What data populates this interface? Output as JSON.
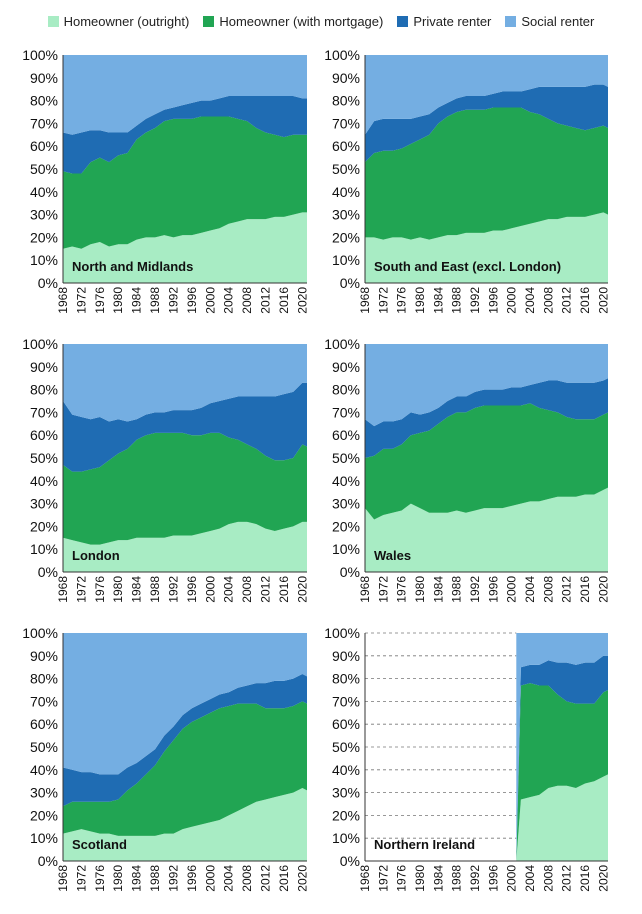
{
  "legend": [
    {
      "label": "Homeowner (outright)",
      "color": "#a8ecc4"
    },
    {
      "label": "Homeowner (with mortgage)",
      "color": "#21a553"
    },
    {
      "label": "Private renter",
      "color": "#1f6cb3"
    },
    {
      "label": "Social renter",
      "color": "#74aee2"
    }
  ],
  "chart_data": [
    {
      "type": "area",
      "stacked": true,
      "title": "North and Midlands",
      "x": [
        1968,
        1970,
        1972,
        1974,
        1976,
        1978,
        1980,
        1982,
        1984,
        1986,
        1988,
        1990,
        1992,
        1994,
        1996,
        1998,
        2000,
        2002,
        2004,
        2006,
        2008,
        2010,
        2012,
        2014,
        2016,
        2018,
        2020,
        2021
      ],
      "series": [
        {
          "name": "Homeowner (outright)",
          "values": [
            15,
            16,
            15,
            17,
            18,
            16,
            17,
            17,
            19,
            20,
            20,
            21,
            20,
            21,
            21,
            22,
            23,
            24,
            26,
            27,
            28,
            28,
            28,
            29,
            29,
            30,
            31,
            31
          ]
        },
        {
          "name": "Homeowner (with mortgage)",
          "values": [
            34,
            32,
            33,
            36,
            37,
            37,
            39,
            40,
            44,
            46,
            48,
            50,
            52,
            51,
            51,
            51,
            50,
            49,
            47,
            45,
            43,
            40,
            38,
            36,
            35,
            35,
            34,
            34
          ]
        },
        {
          "name": "Private renter",
          "values": [
            17,
            17,
            18,
            14,
            12,
            13,
            10,
            9,
            6,
            6,
            6,
            5,
            5,
            6,
            7,
            7,
            7,
            8,
            9,
            10,
            11,
            14,
            16,
            17,
            18,
            17,
            16,
            16
          ]
        },
        {
          "name": "Social renter",
          "values": [
            34,
            35,
            34,
            33,
            33,
            34,
            34,
            34,
            31,
            28,
            26,
            24,
            23,
            22,
            21,
            20,
            20,
            19,
            18,
            18,
            18,
            18,
            18,
            18,
            18,
            18,
            19,
            19
          ]
        }
      ],
      "ylim": [
        0,
        100
      ],
      "yticks": [
        "0%",
        "10%",
        "20%",
        "30%",
        "40%",
        "50%",
        "60%",
        "70%",
        "80%",
        "90%",
        "100%"
      ],
      "xticks": [
        "1968",
        "1972",
        "1976",
        "1980",
        "1984",
        "1988",
        "1992",
        "1996",
        "2000",
        "2004",
        "2008",
        "2012",
        "2016",
        "2020"
      ]
    },
    {
      "type": "area",
      "stacked": true,
      "title": "South and East (excl. London)",
      "x": [
        1968,
        1970,
        1972,
        1974,
        1976,
        1978,
        1980,
        1982,
        1984,
        1986,
        1988,
        1990,
        1992,
        1994,
        1996,
        1998,
        2000,
        2002,
        2004,
        2006,
        2008,
        2010,
        2012,
        2014,
        2016,
        2018,
        2020,
        2021
      ],
      "series": [
        {
          "name": "Homeowner (outright)",
          "values": [
            20,
            20,
            19,
            20,
            20,
            19,
            20,
            19,
            20,
            21,
            21,
            22,
            22,
            22,
            23,
            23,
            24,
            25,
            26,
            27,
            28,
            28,
            29,
            29,
            29,
            30,
            31,
            30
          ]
        },
        {
          "name": "Homeowner (with mortgage)",
          "values": [
            33,
            37,
            39,
            38,
            39,
            42,
            43,
            46,
            50,
            52,
            54,
            54,
            54,
            54,
            54,
            54,
            53,
            52,
            49,
            47,
            44,
            42,
            40,
            39,
            38,
            38,
            38,
            38
          ]
        },
        {
          "name": "Private renter",
          "values": [
            12,
            14,
            14,
            14,
            13,
            11,
            10,
            9,
            7,
            6,
            6,
            6,
            6,
            6,
            6,
            7,
            7,
            7,
            10,
            12,
            14,
            16,
            17,
            18,
            19,
            19,
            18,
            18
          ]
        },
        {
          "name": "Social renter",
          "values": [
            35,
            29,
            28,
            28,
            28,
            28,
            27,
            26,
            23,
            21,
            19,
            18,
            18,
            18,
            17,
            16,
            16,
            16,
            15,
            14,
            14,
            14,
            14,
            14,
            14,
            13,
            13,
            14
          ]
        }
      ],
      "ylim": [
        0,
        100
      ],
      "yticks": [
        "0%",
        "10%",
        "20%",
        "30%",
        "40%",
        "50%",
        "60%",
        "70%",
        "80%",
        "90%",
        "100%"
      ],
      "xticks": [
        "1968",
        "1972",
        "1976",
        "1980",
        "1984",
        "1988",
        "1992",
        "1996",
        "2000",
        "2004",
        "2008",
        "2012",
        "2016",
        "2020"
      ]
    },
    {
      "type": "area",
      "stacked": true,
      "title": "London",
      "x": [
        1968,
        1970,
        1972,
        1974,
        1976,
        1978,
        1980,
        1982,
        1984,
        1986,
        1988,
        1990,
        1992,
        1994,
        1996,
        1998,
        2000,
        2002,
        2004,
        2006,
        2008,
        2010,
        2012,
        2014,
        2016,
        2018,
        2020,
        2021
      ],
      "series": [
        {
          "name": "Homeowner (outright)",
          "values": [
            15,
            14,
            13,
            12,
            12,
            13,
            14,
            14,
            15,
            15,
            15,
            15,
            16,
            16,
            16,
            17,
            18,
            19,
            21,
            22,
            22,
            21,
            19,
            18,
            19,
            20,
            22,
            22
          ]
        },
        {
          "name": "Homeowner (with mortgage)",
          "values": [
            32,
            30,
            31,
            33,
            34,
            36,
            38,
            40,
            43,
            45,
            46,
            46,
            45,
            45,
            44,
            43,
            43,
            42,
            38,
            36,
            34,
            33,
            32,
            31,
            30,
            30,
            34,
            33
          ]
        },
        {
          "name": "Private renter",
          "values": [
            28,
            25,
            24,
            22,
            22,
            17,
            15,
            12,
            9,
            9,
            9,
            9,
            10,
            10,
            11,
            12,
            13,
            14,
            17,
            19,
            21,
            23,
            26,
            28,
            29,
            29,
            27,
            28
          ]
        },
        {
          "name": "Social renter",
          "values": [
            25,
            31,
            32,
            33,
            32,
            34,
            33,
            34,
            33,
            31,
            30,
            30,
            29,
            29,
            29,
            28,
            26,
            25,
            24,
            23,
            23,
            23,
            23,
            23,
            22,
            21,
            17,
            17
          ]
        }
      ],
      "ylim": [
        0,
        100
      ],
      "yticks": [
        "0%",
        "10%",
        "20%",
        "30%",
        "40%",
        "50%",
        "60%",
        "70%",
        "80%",
        "90%",
        "100%"
      ],
      "xticks": [
        "1968",
        "1972",
        "1976",
        "1980",
        "1984",
        "1988",
        "1992",
        "1996",
        "2000",
        "2004",
        "2008",
        "2012",
        "2016",
        "2020"
      ]
    },
    {
      "type": "area",
      "stacked": true,
      "title": "Wales",
      "x": [
        1968,
        1970,
        1972,
        1974,
        1976,
        1978,
        1980,
        1982,
        1984,
        1986,
        1988,
        1990,
        1992,
        1994,
        1996,
        1998,
        2000,
        2002,
        2004,
        2006,
        2008,
        2010,
        2012,
        2014,
        2016,
        2018,
        2020,
        2021
      ],
      "series": [
        {
          "name": "Homeowner (outright)",
          "values": [
            28,
            23,
            25,
            26,
            27,
            30,
            28,
            26,
            26,
            26,
            27,
            26,
            27,
            28,
            28,
            28,
            29,
            30,
            31,
            31,
            32,
            33,
            33,
            33,
            34,
            34,
            36,
            37
          ]
        },
        {
          "name": "Homeowner (with mortgage)",
          "values": [
            22,
            28,
            29,
            28,
            29,
            30,
            33,
            36,
            39,
            42,
            43,
            44,
            45,
            45,
            45,
            45,
            44,
            43,
            43,
            41,
            39,
            37,
            35,
            34,
            33,
            33,
            33,
            33
          ]
        },
        {
          "name": "Private renter",
          "values": [
            17,
            13,
            12,
            12,
            11,
            10,
            8,
            8,
            7,
            7,
            7,
            7,
            7,
            7,
            7,
            7,
            8,
            8,
            8,
            11,
            13,
            14,
            15,
            16,
            16,
            16,
            15,
            15
          ]
        },
        {
          "name": "Social renter",
          "values": [
            33,
            36,
            34,
            34,
            33,
            30,
            31,
            30,
            28,
            25,
            23,
            23,
            21,
            20,
            20,
            20,
            19,
            19,
            18,
            17,
            16,
            16,
            17,
            17,
            17,
            17,
            16,
            15
          ]
        }
      ],
      "ylim": [
        0,
        100
      ],
      "yticks": [
        "0%",
        "10%",
        "20%",
        "30%",
        "40%",
        "50%",
        "60%",
        "70%",
        "80%",
        "90%",
        "100%"
      ],
      "xticks": [
        "1968",
        "1972",
        "1976",
        "1980",
        "1984",
        "1988",
        "1992",
        "1996",
        "2000",
        "2004",
        "2008",
        "2012",
        "2016",
        "2020"
      ]
    },
    {
      "type": "area",
      "stacked": true,
      "title": "Scotland",
      "x": [
        1968,
        1970,
        1972,
        1974,
        1976,
        1978,
        1980,
        1982,
        1984,
        1986,
        1988,
        1990,
        1992,
        1994,
        1996,
        1998,
        2000,
        2002,
        2004,
        2006,
        2008,
        2010,
        2012,
        2014,
        2016,
        2018,
        2020,
        2021
      ],
      "series": [
        {
          "name": "Homeowner (outright)",
          "values": [
            12,
            13,
            14,
            13,
            12,
            12,
            11,
            11,
            11,
            11,
            11,
            12,
            12,
            14,
            15,
            16,
            17,
            18,
            20,
            22,
            24,
            26,
            27,
            28,
            29,
            30,
            32,
            31
          ]
        },
        {
          "name": "Homeowner (with mortgage)",
          "values": [
            12,
            13,
            12,
            13,
            14,
            14,
            16,
            20,
            23,
            27,
            31,
            36,
            41,
            44,
            46,
            47,
            48,
            49,
            48,
            47,
            45,
            43,
            40,
            39,
            38,
            38,
            38,
            38
          ]
        },
        {
          "name": "Private renter",
          "values": [
            17,
            14,
            13,
            13,
            12,
            12,
            11,
            10,
            9,
            8,
            7,
            7,
            6,
            6,
            6,
            6,
            6,
            6,
            6,
            7,
            8,
            9,
            11,
            12,
            12,
            12,
            12,
            12
          ]
        },
        {
          "name": "Social renter",
          "values": [
            59,
            60,
            61,
            61,
            62,
            62,
            62,
            59,
            57,
            54,
            51,
            45,
            41,
            36,
            33,
            31,
            29,
            27,
            26,
            24,
            23,
            22,
            22,
            21,
            21,
            20,
            18,
            19
          ]
        }
      ],
      "ylim": [
        0,
        100
      ],
      "yticks": [
        "0%",
        "10%",
        "20%",
        "30%",
        "40%",
        "50%",
        "60%",
        "70%",
        "80%",
        "90%",
        "100%"
      ],
      "xticks": [
        "1968",
        "1972",
        "1976",
        "1980",
        "1984",
        "1988",
        "1992",
        "1996",
        "2000",
        "2004",
        "2008",
        "2012",
        "2016",
        "2020"
      ]
    },
    {
      "type": "area",
      "stacked": true,
      "title": "Northern Ireland",
      "x": [
        2001,
        2002,
        2004,
        2006,
        2008,
        2010,
        2012,
        2014,
        2016,
        2018,
        2020,
        2021
      ],
      "series": [
        {
          "name": "Homeowner (outright)",
          "values": [
            0,
            27,
            28,
            29,
            32,
            33,
            33,
            32,
            34,
            35,
            37,
            38
          ]
        },
        {
          "name": "Homeowner (with mortgage)",
          "values": [
            0,
            50,
            50,
            48,
            45,
            40,
            37,
            37,
            35,
            34,
            37,
            37
          ]
        },
        {
          "name": "Private renter",
          "values": [
            0,
            8,
            8,
            9,
            11,
            14,
            17,
            17,
            18,
            18,
            16,
            15
          ]
        },
        {
          "name": "Social renter",
          "values": [
            100,
            15,
            14,
            14,
            12,
            13,
            13,
            14,
            13,
            13,
            10,
            10
          ]
        }
      ],
      "ylim": [
        0,
        100
      ],
      "yticks": [
        "0%",
        "10%",
        "20%",
        "30%",
        "40%",
        "50%",
        "60%",
        "70%",
        "80%",
        "90%",
        "100%"
      ],
      "xticks": [
        "1968",
        "1972",
        "1976",
        "1980",
        "1984",
        "1988",
        "1992",
        "1996",
        "2000",
        "2004",
        "2008",
        "2012",
        "2016",
        "2020"
      ]
    }
  ]
}
